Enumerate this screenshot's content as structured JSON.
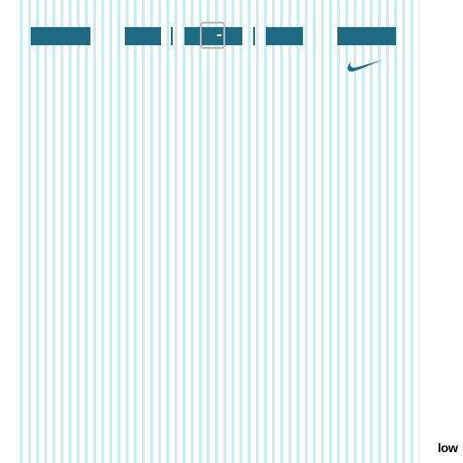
{
  "badge": "low"
}
